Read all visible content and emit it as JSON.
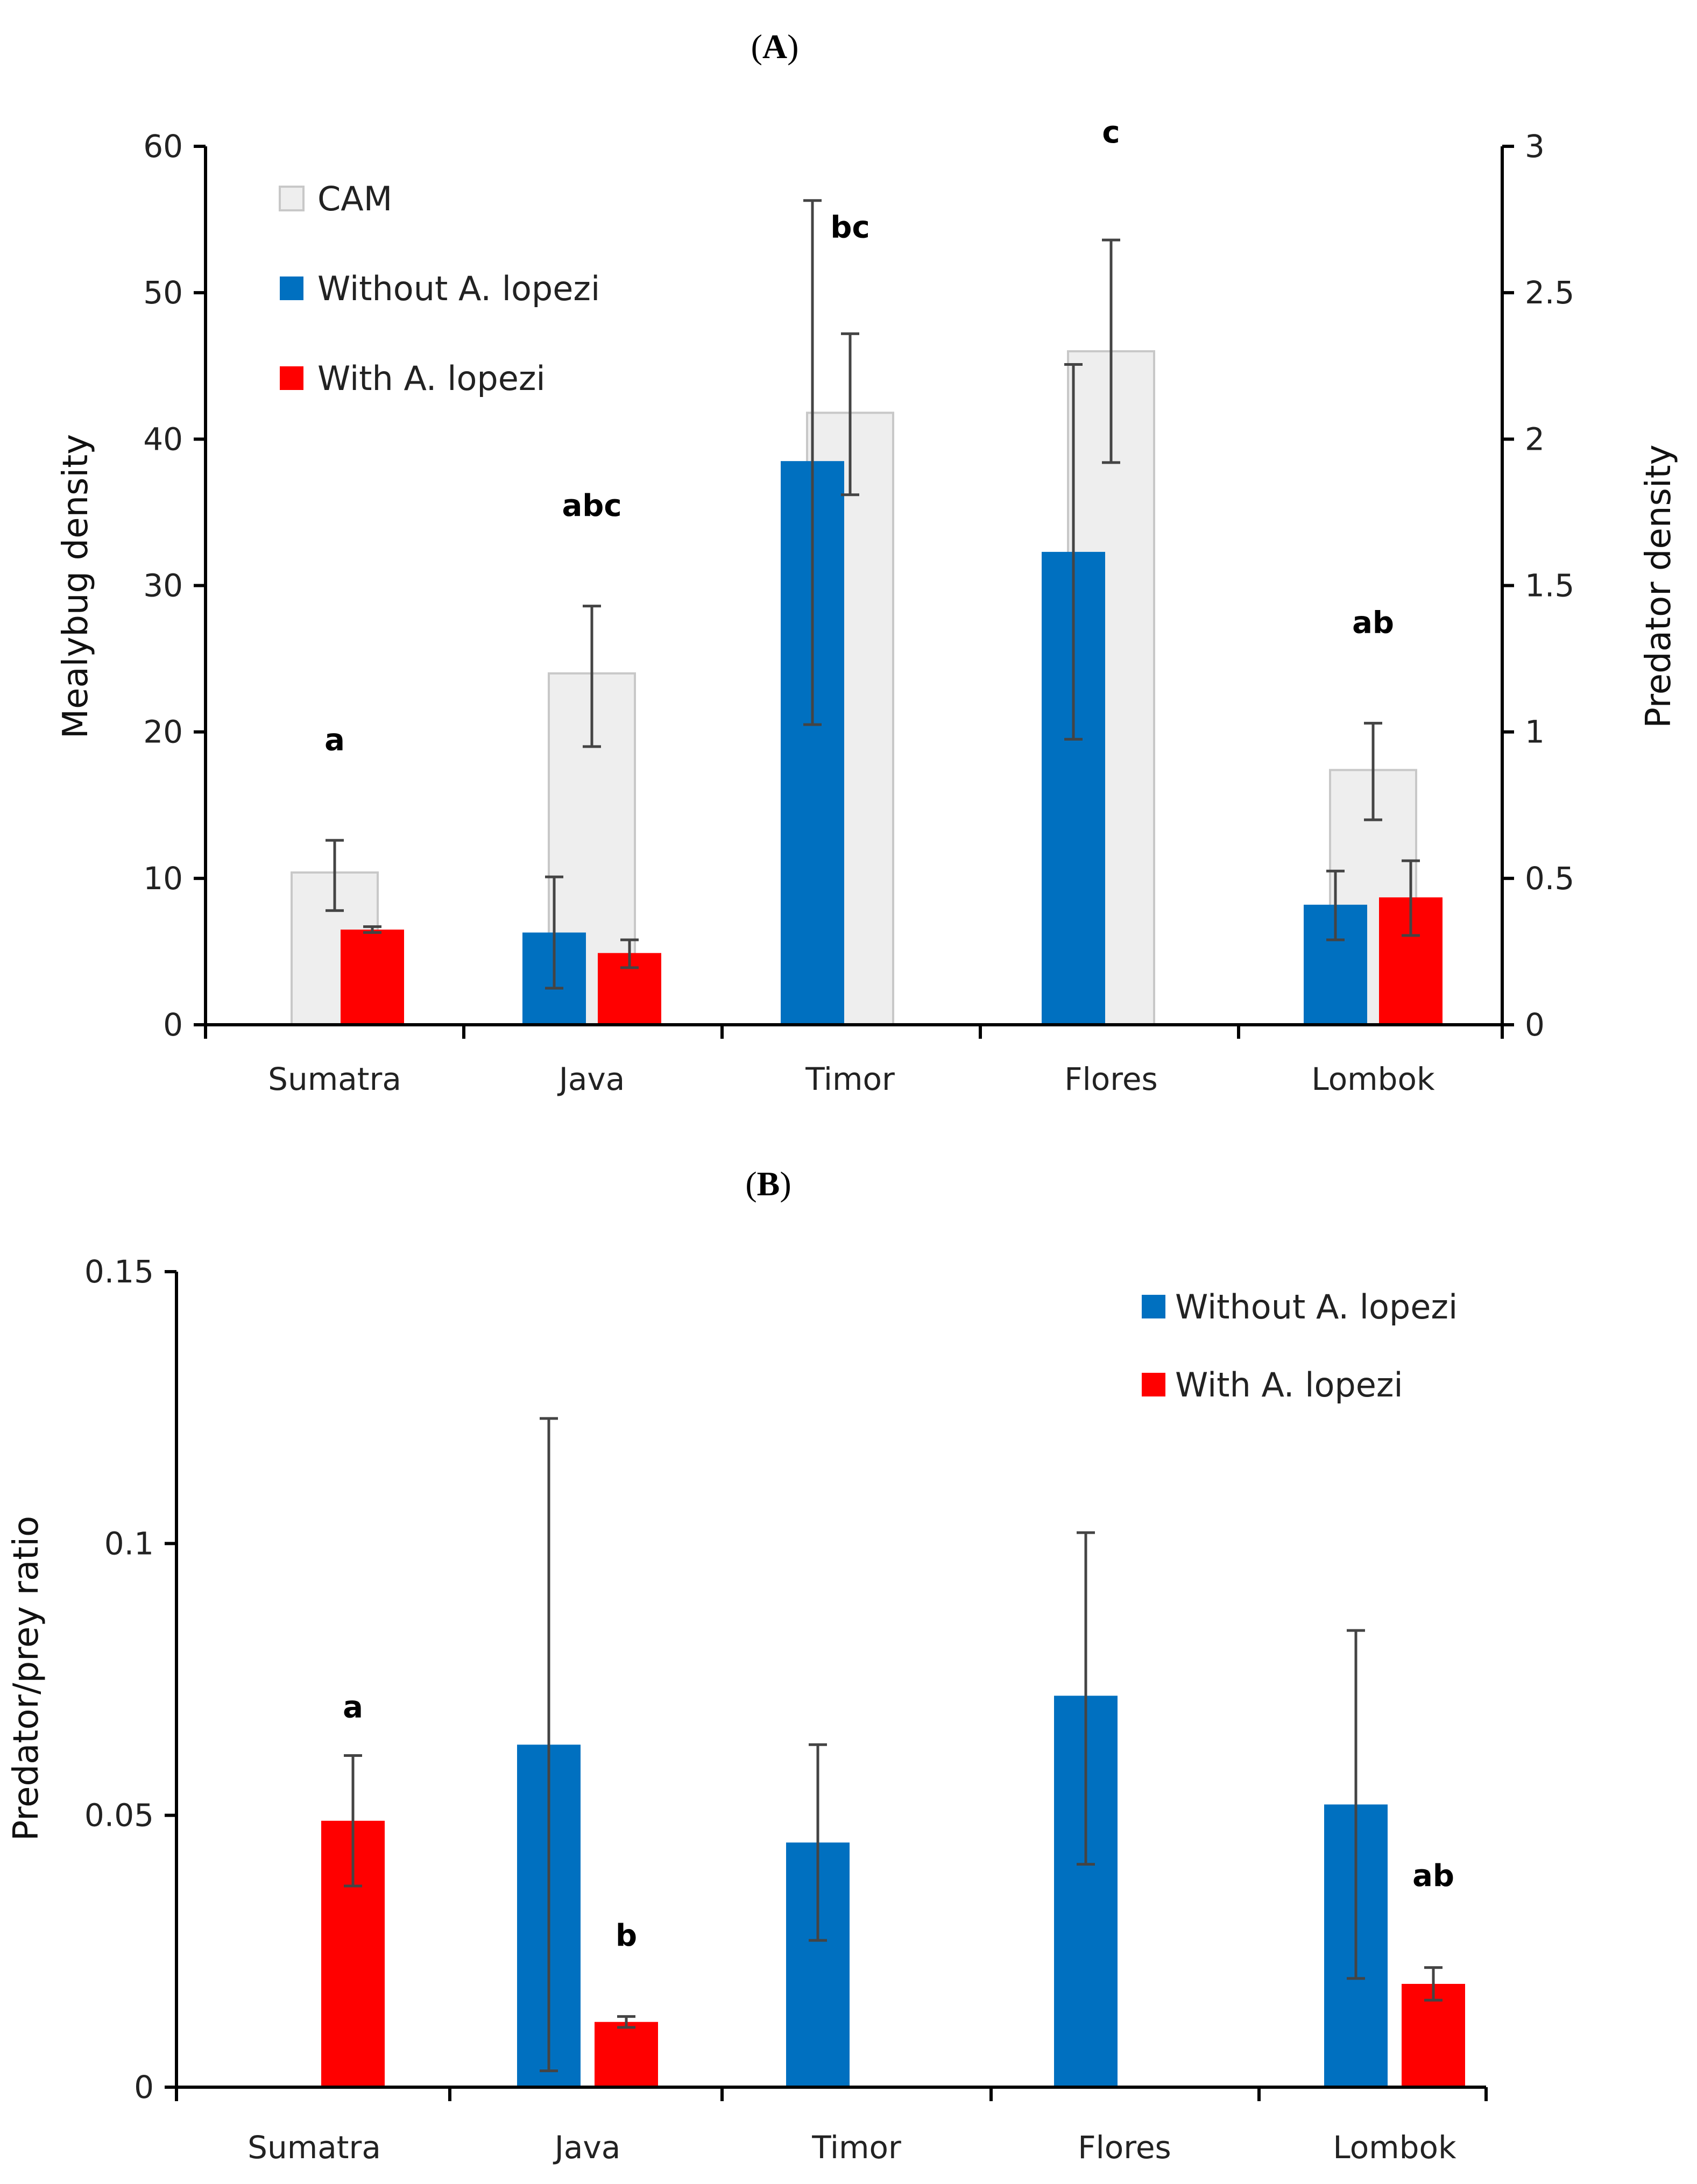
{
  "chart_data": [
    {
      "panel": "A",
      "panel_label_open": "(",
      "panel_label_letter": "A",
      "panel_label_close": ")",
      "type": "bar",
      "categories": [
        "Sumatra",
        "Java",
        "Timor",
        "Flores",
        "Lombok"
      ],
      "ylabel": "Mealybug density",
      "y2label": "Predator density",
      "ylim": [
        0,
        60
      ],
      "yticks": [
        "0",
        "10",
        "20",
        "30",
        "40",
        "50",
        "60"
      ],
      "y2lim": [
        0,
        3
      ],
      "y2ticks": [
        "0",
        "0.5",
        "1",
        "1.5",
        "2",
        "2.5",
        "3"
      ],
      "background_series": {
        "name": "CAM",
        "axis": "right",
        "color": "#eeeeee",
        "values": [
          0.52,
          1.2,
          2.09,
          2.3,
          0.87
        ],
        "err_low": [
          0.39,
          0.95,
          1.81,
          1.92,
          0.7
        ],
        "err_high": [
          0.63,
          1.43,
          2.36,
          2.68,
          1.03
        ]
      },
      "series": [
        {
          "name": "Without A. lopezi",
          "color": "#0070c0",
          "values": [
            null,
            6.3,
            38.5,
            32.3,
            8.2
          ],
          "err_low": [
            null,
            2.5,
            20.5,
            19.5,
            5.8
          ],
          "err_high": [
            null,
            10.1,
            56.3,
            45.1,
            10.5
          ]
        },
        {
          "name": "With A. lopezi",
          "color": "#ff0000",
          "values": [
            6.5,
            4.9,
            null,
            null,
            8.7
          ],
          "err_low": [
            6.3,
            3.9,
            null,
            null,
            6.1
          ],
          "err_high": [
            6.7,
            5.8,
            null,
            null,
            11.2
          ]
        }
      ],
      "annotations": [
        {
          "category": "Sumatra",
          "text": "a",
          "y": 19.5
        },
        {
          "category": "Java",
          "text": "abc",
          "y": 35.5
        },
        {
          "category": "Timor",
          "text": "bc",
          "y": 54.5
        },
        {
          "category": "Flores",
          "text": "c",
          "y": 61
        },
        {
          "category": "Lombok",
          "text": "ab",
          "y": 27.5
        }
      ],
      "legend": [
        "CAM",
        "Without A. lopezi",
        "With A. lopezi"
      ]
    },
    {
      "panel": "B",
      "panel_label_open": "(",
      "panel_label_letter": "B",
      "panel_label_close": ")",
      "type": "bar",
      "categories": [
        "Sumatra",
        "Java",
        "Timor",
        "Flores",
        "Lombok"
      ],
      "ylabel": "Predator/prey ratio",
      "ylim": [
        0,
        0.15
      ],
      "yticks": [
        "0",
        "0.05",
        "0.1",
        "0.15"
      ],
      "series": [
        {
          "name": "Without A. lopezi",
          "color": "#0070c0",
          "values": [
            null,
            0.063,
            0.045,
            0.072,
            0.052
          ],
          "err_low": [
            null,
            0.003,
            0.027,
            0.041,
            0.02
          ],
          "err_high": [
            null,
            0.123,
            0.063,
            0.102,
            0.084
          ]
        },
        {
          "name": "With A. lopezi",
          "color": "#ff0000",
          "values": [
            0.049,
            0.012,
            null,
            null,
            0.019
          ],
          "err_low": [
            0.037,
            0.011,
            null,
            null,
            0.016
          ],
          "err_high": [
            0.061,
            0.013,
            null,
            null,
            0.022
          ]
        }
      ],
      "annotations": [
        {
          "category": "Sumatra",
          "text": "a",
          "y": 0.07
        },
        {
          "category": "Java",
          "text": "b",
          "y": 0.028
        },
        {
          "category": "Lombok",
          "text": "ab",
          "y": 0.039
        }
      ],
      "legend": [
        "Without A. lopezi",
        "With A. lopezi"
      ]
    }
  ]
}
